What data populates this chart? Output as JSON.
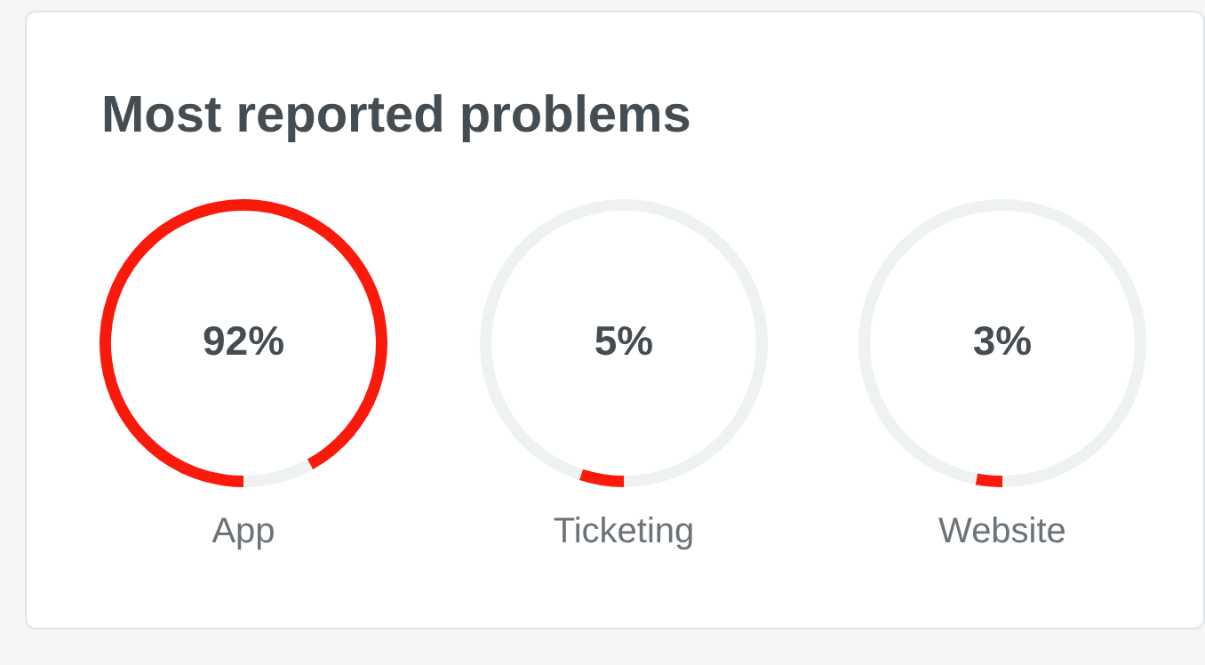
{
  "chart_data": [
    {
      "type": "donut",
      "title": "Most reported problems",
      "xlabel": "App",
      "categories": [
        null,
        null
      ],
      "values": [
        92,
        8
      ],
      "annotations": [
        "92%"
      ],
      "colors": [
        "#fa1a0c",
        "#eef2f1"
      ],
      "legend": false
    },
    {
      "type": "donut",
      "xlabel": "Ticketing",
      "categories": [
        null,
        null
      ],
      "values": [
        5,
        95
      ],
      "annotations": [
        "5%"
      ],
      "colors": [
        "#fa1a0c",
        "#eef2f1"
      ],
      "legend": false
    },
    {
      "type": "donut",
      "xlabel": "Website",
      "categories": [
        null,
        null
      ],
      "values": [
        3,
        97
      ],
      "annotations": [
        "3%"
      ],
      "colors": [
        "#fa1a0c",
        "#eef2f1"
      ],
      "legend": false
    }
  ]
}
